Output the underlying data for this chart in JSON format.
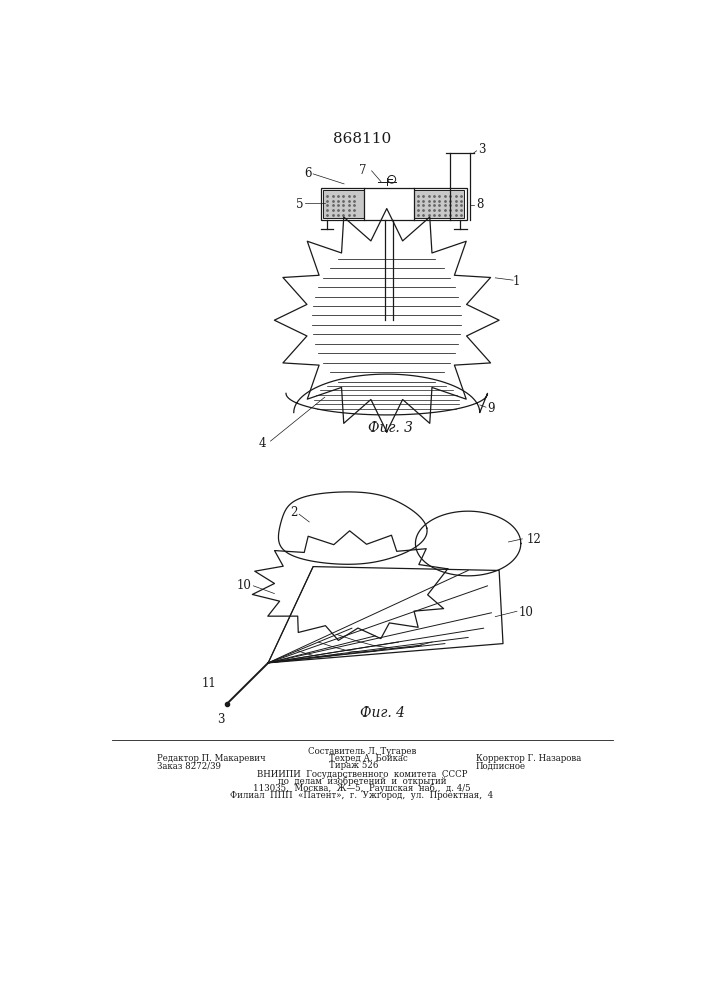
{
  "patent_number": "868110",
  "fig3_label": "Фиг. 3",
  "fig4_label": "Фиг. 4",
  "footer_line1": "Составитель Л. Тугарев",
  "footer_line2_left": "Редактор П. Макаревич",
  "footer_line2_mid": "Техред А. Бойкас",
  "footer_line2_right": "Корректор Г. Назарова",
  "footer_line3_left": "Заказ 8272/39",
  "footer_line3_mid": "Тираж 526",
  "footer_line3_right": "Подписное",
  "footer_line4": "ВНИИПИ  Государственного  комитета  СССР",
  "footer_line5": "по  делам  изобретений  и  открытий",
  "footer_line6": "113035,  Москва,  Ж—5,  Раушская  наб.,  д. 4/5",
  "footer_line7": "Филиал  ППП  «Патент»,  г.  Ужгород,  ул.  Проектная,  4",
  "bg_color": "#ffffff",
  "line_color": "#1a1a1a"
}
